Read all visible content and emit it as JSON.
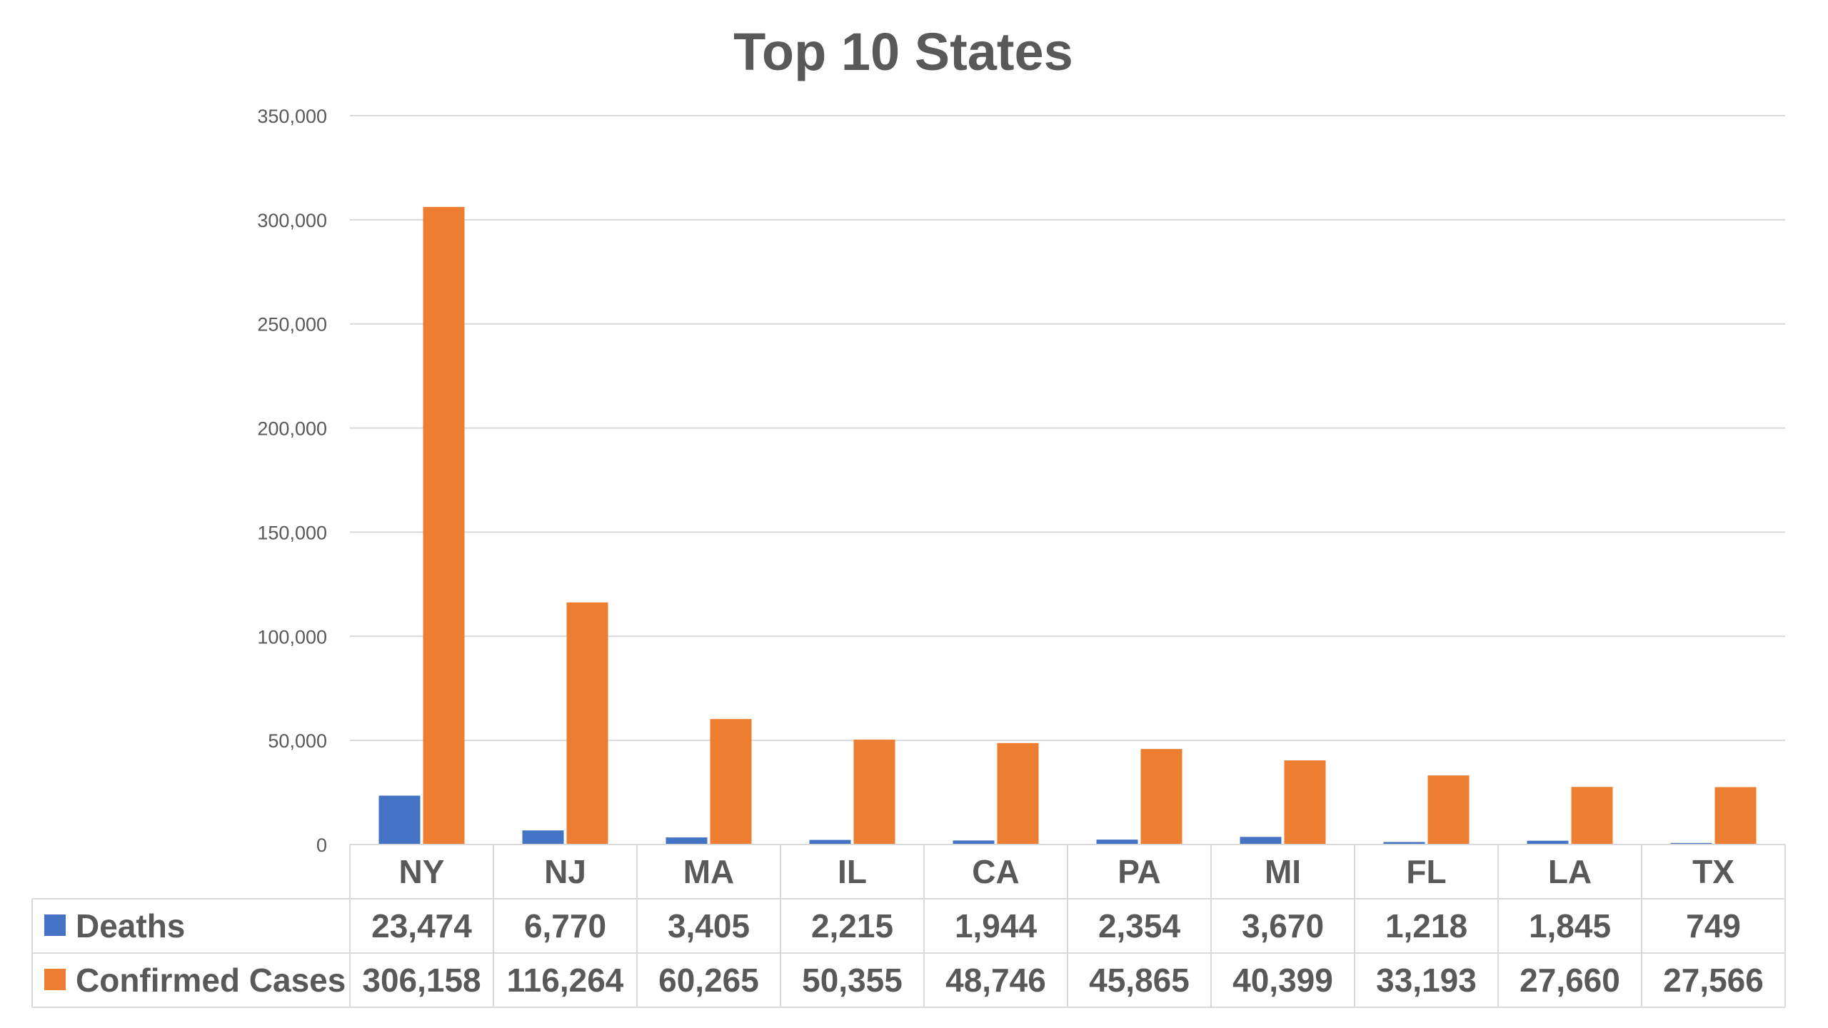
{
  "chart_data": {
    "type": "bar",
    "title": "Top 10 States",
    "categories": [
      "NY",
      "NJ",
      "MA",
      "IL",
      "CA",
      "PA",
      "MI",
      "FL",
      "LA",
      "TX"
    ],
    "series": [
      {
        "name": "Deaths",
        "color": "#4472c4",
        "values": [
          23474,
          6770,
          3405,
          2215,
          1944,
          2354,
          3670,
          1218,
          1845,
          749
        ],
        "labels": [
          "23,474",
          "6,770",
          "3,405",
          "2,215",
          "1,944",
          "2,354",
          "3,670",
          "1,218",
          "1,845",
          "749"
        ]
      },
      {
        "name": "Confirmed Cases",
        "color": "#ed7d31",
        "values": [
          306158,
          116264,
          60265,
          50355,
          48746,
          45865,
          40399,
          33193,
          27660,
          27566
        ],
        "labels": [
          "306,158",
          "116,264",
          "60,265",
          "50,355",
          "48,746",
          "45,865",
          "40,399",
          "33,193",
          "27,660",
          "27,566"
        ]
      }
    ],
    "ylim": [
      0,
      350000
    ],
    "yticks": [
      "0",
      "50,000",
      "100,000",
      "150,000",
      "200,000",
      "250,000",
      "300,000",
      "350,000"
    ],
    "grid": true,
    "legend": "data-table"
  }
}
